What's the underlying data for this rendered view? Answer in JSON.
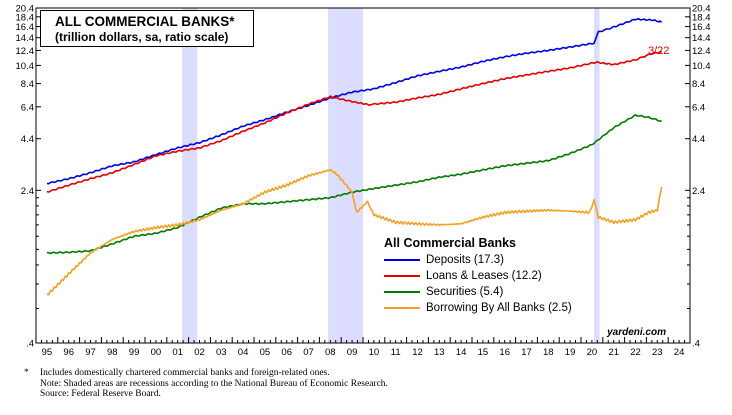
{
  "chart_data": {
    "type": "line",
    "title": "ALL COMMERCIAL BANKS*",
    "subtitle": "(trillion dollars, sa, ratio scale)",
    "scale": "log",
    "ylim": [
      0.4,
      20.4
    ],
    "y_ticks": [
      0.4,
      2.4,
      4.4,
      6.4,
      8.4,
      10.4,
      12.4,
      14.4,
      16.4,
      18.4,
      20.4
    ],
    "y_tick_labels": [
      ".4",
      "2.4",
      "4.4",
      "6.4",
      "8.4",
      "10.4",
      "12.4",
      "14.4",
      "16.4",
      "18.4",
      "20.4"
    ],
    "xlim": [
      1994.5,
      2024.5
    ],
    "x_tick_labels": [
      "95",
      "96",
      "97",
      "98",
      "99",
      "00",
      "01",
      "02",
      "03",
      "04",
      "05",
      "06",
      "07",
      "08",
      "09",
      "10",
      "11",
      "12",
      "13",
      "14",
      "15",
      "16",
      "17",
      "18",
      "19",
      "20",
      "21",
      "22",
      "23",
      "24"
    ],
    "recessions": [
      [
        2001.2,
        2001.9
      ],
      [
        2007.9,
        2009.5
      ],
      [
        2020.1,
        2020.35
      ]
    ],
    "end_annotation": "3/22",
    "legend_title": "All Commercial Banks",
    "watermark": "yardeni.com",
    "series": [
      {
        "name": "Deposits (17.3)",
        "color": "#0000dd",
        "points": [
          [
            1995,
            2.6
          ],
          [
            1996,
            2.75
          ],
          [
            1997,
            2.95
          ],
          [
            1998,
            3.2
          ],
          [
            1999,
            3.35
          ],
          [
            2000,
            3.65
          ],
          [
            2001,
            3.95
          ],
          [
            2002,
            4.2
          ],
          [
            2003,
            4.6
          ],
          [
            2004,
            5.1
          ],
          [
            2005,
            5.5
          ],
          [
            2006,
            6.0
          ],
          [
            2007,
            6.5
          ],
          [
            2008,
            7.1
          ],
          [
            2009,
            7.6
          ],
          [
            2010,
            7.9
          ],
          [
            2011,
            8.5
          ],
          [
            2012,
            9.2
          ],
          [
            2013,
            9.7
          ],
          [
            2014,
            10.2
          ],
          [
            2015,
            10.9
          ],
          [
            2016,
            11.5
          ],
          [
            2017,
            12.0
          ],
          [
            2018,
            12.4
          ],
          [
            2019,
            12.9
          ],
          [
            2020.1,
            13.5
          ],
          [
            2020.3,
            15.4
          ],
          [
            2021,
            16.3
          ],
          [
            2022,
            17.9
          ],
          [
            2022.8,
            17.7
          ],
          [
            2023.2,
            17.3
          ]
        ]
      },
      {
        "name": "Loans & Leases (12.2)",
        "color": "#e00000",
        "points": [
          [
            1995,
            2.35
          ],
          [
            1996,
            2.55
          ],
          [
            1997,
            2.75
          ],
          [
            1998,
            2.95
          ],
          [
            1999,
            3.25
          ],
          [
            2000,
            3.6
          ],
          [
            2001,
            3.8
          ],
          [
            2002,
            3.95
          ],
          [
            2003,
            4.3
          ],
          [
            2004,
            4.8
          ],
          [
            2005,
            5.3
          ],
          [
            2006,
            5.95
          ],
          [
            2007,
            6.6
          ],
          [
            2008,
            7.2
          ],
          [
            2009,
            6.8
          ],
          [
            2009.8,
            6.55
          ],
          [
            2010,
            6.6
          ],
          [
            2011,
            6.75
          ],
          [
            2012,
            7.1
          ],
          [
            2013,
            7.4
          ],
          [
            2014,
            7.9
          ],
          [
            2015,
            8.4
          ],
          [
            2016,
            8.9
          ],
          [
            2017,
            9.3
          ],
          [
            2018,
            9.7
          ],
          [
            2019,
            10.1
          ],
          [
            2020.2,
            10.8
          ],
          [
            2021,
            10.5
          ],
          [
            2022,
            11.1
          ],
          [
            2022.7,
            11.9
          ],
          [
            2023.2,
            12.2
          ]
        ]
      },
      {
        "name": "Securities (5.4)",
        "color": "#007a00",
        "points": [
          [
            1995,
            1.15
          ],
          [
            1996,
            1.16
          ],
          [
            1997,
            1.18
          ],
          [
            1998,
            1.28
          ],
          [
            1999,
            1.4
          ],
          [
            2000,
            1.45
          ],
          [
            2001,
            1.55
          ],
          [
            2002,
            1.75
          ],
          [
            2003,
            1.95
          ],
          [
            2004,
            2.05
          ],
          [
            2005,
            2.05
          ],
          [
            2006,
            2.1
          ],
          [
            2007,
            2.15
          ],
          [
            2008,
            2.2
          ],
          [
            2009,
            2.35
          ],
          [
            2010,
            2.45
          ],
          [
            2011,
            2.55
          ],
          [
            2012,
            2.65
          ],
          [
            2013,
            2.8
          ],
          [
            2014,
            2.9
          ],
          [
            2015,
            3.05
          ],
          [
            2016,
            3.2
          ],
          [
            2017,
            3.3
          ],
          [
            2018,
            3.4
          ],
          [
            2019,
            3.7
          ],
          [
            2020,
            4.1
          ],
          [
            2021,
            5.0
          ],
          [
            2022,
            5.8
          ],
          [
            2022.6,
            5.65
          ],
          [
            2023.2,
            5.4
          ]
        ]
      },
      {
        "name": "Borrowing By All Banks (2.5)",
        "color": "#f4a020",
        "points": [
          [
            1995,
            0.7
          ],
          [
            1996,
            0.9
          ],
          [
            1997,
            1.15
          ],
          [
            1998,
            1.35
          ],
          [
            1999,
            1.48
          ],
          [
            2000,
            1.55
          ],
          [
            2001,
            1.6
          ],
          [
            2002,
            1.7
          ],
          [
            2003,
            1.9
          ],
          [
            2004,
            2.05
          ],
          [
            2005,
            2.35
          ],
          [
            2006,
            2.55
          ],
          [
            2007,
            2.85
          ],
          [
            2008,
            3.05
          ],
          [
            2008.3,
            2.9
          ],
          [
            2009,
            2.35
          ],
          [
            2009.2,
            1.85
          ],
          [
            2009.7,
            2.1
          ],
          [
            2010,
            1.8
          ],
          [
            2011,
            1.65
          ],
          [
            2012,
            1.62
          ],
          [
            2013,
            1.6
          ],
          [
            2014,
            1.62
          ],
          [
            2015,
            1.75
          ],
          [
            2016,
            1.85
          ],
          [
            2017,
            1.88
          ],
          [
            2018,
            1.9
          ],
          [
            2019,
            1.88
          ],
          [
            2019.9,
            1.85
          ],
          [
            2020.1,
            2.15
          ],
          [
            2020.3,
            1.75
          ],
          [
            2021,
            1.65
          ],
          [
            2022,
            1.7
          ],
          [
            2022.6,
            1.85
          ],
          [
            2023,
            1.9
          ],
          [
            2023.2,
            2.5
          ]
        ]
      }
    ]
  },
  "legend": {
    "title": "All Commercial Banks",
    "items": [
      {
        "label": "Deposits (17.3)",
        "color": "#0000dd"
      },
      {
        "label": "Loans & Leases (12.2)",
        "color": "#e00000"
      },
      {
        "label": "Securities (5.4)",
        "color": "#007a00"
      },
      {
        "label": "Borrowing By All Banks (2.5)",
        "color": "#f4a020"
      }
    ]
  },
  "footnotes": {
    "star": "*",
    "line1": "Includes domestically chartered commercial banks and foreign-related ones.",
    "line2": "Note: Shaded areas are recessions according to the National Bureau of Economic Research.",
    "line3": "Source: Federal Reserve Board."
  },
  "colors": {
    "recession": "#dcdcff",
    "axis": "#000000"
  }
}
